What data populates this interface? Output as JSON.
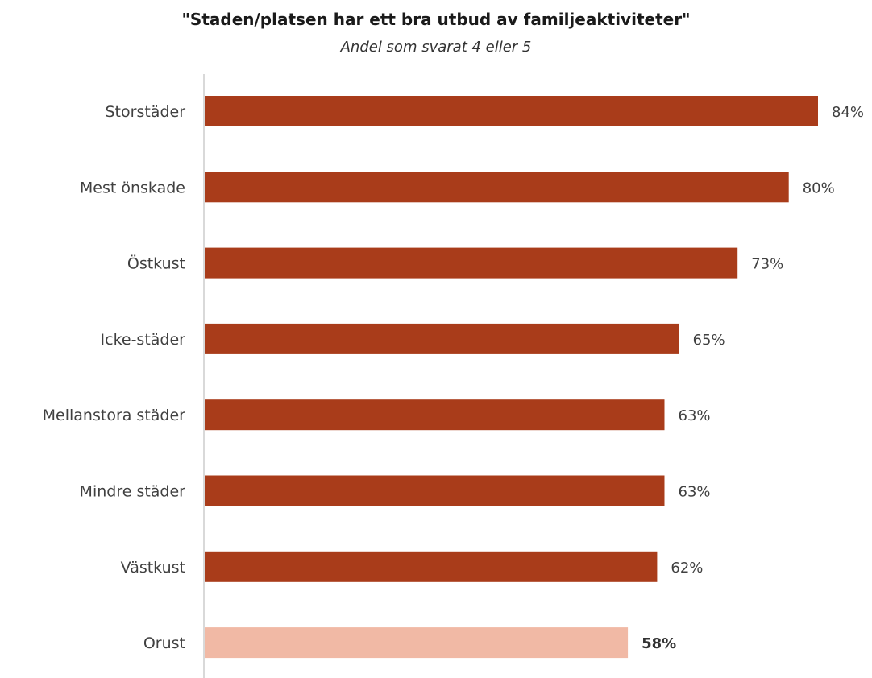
{
  "chart_data": {
    "type": "bar",
    "orientation": "horizontal",
    "title": "\"Staden/platsen har ett bra utbud av familjeaktiviteter\"",
    "subtitle": "Andel som svarat 4 eller 5",
    "categories": [
      "Storstäder",
      "Mest önskade",
      "Östkust",
      "Icke-städer",
      "Mellanstora städer",
      "Mindre städer",
      "Västkust",
      "Orust"
    ],
    "values": [
      84,
      80,
      73,
      65,
      63,
      63,
      62,
      58
    ],
    "value_labels": [
      "84%",
      "80%",
      "73%",
      "65%",
      "63%",
      "63%",
      "62%",
      "58%"
    ],
    "highlight_category": "Orust",
    "xlim": [
      0,
      84
    ],
    "grid": false,
    "legend": "none",
    "colors": {
      "bar": "#a93c1a",
      "highlight_bar": "#f1b9a5",
      "axis": "#d9d9d9"
    }
  }
}
